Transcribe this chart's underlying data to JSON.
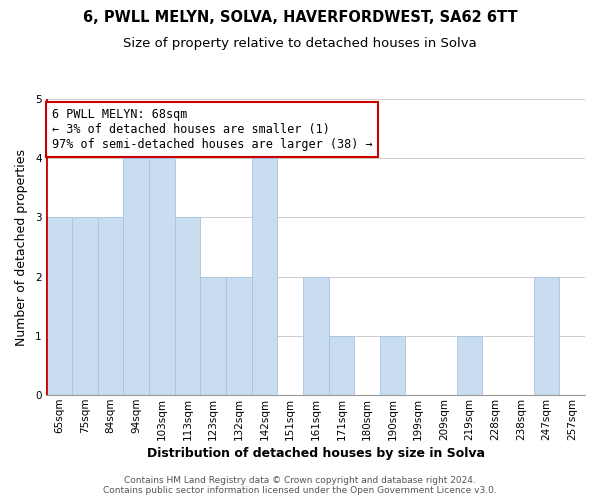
{
  "title_line1": "6, PWLL MELYN, SOLVA, HAVERFORDWEST, SA62 6TT",
  "title_line2": "Size of property relative to detached houses in Solva",
  "xlabel": "Distribution of detached houses by size in Solva",
  "ylabel": "Number of detached properties",
  "bar_labels": [
    "65sqm",
    "75sqm",
    "84sqm",
    "94sqm",
    "103sqm",
    "113sqm",
    "123sqm",
    "132sqm",
    "142sqm",
    "151sqm",
    "161sqm",
    "171sqm",
    "180sqm",
    "190sqm",
    "199sqm",
    "209sqm",
    "219sqm",
    "228sqm",
    "238sqm",
    "247sqm",
    "257sqm"
  ],
  "bar_heights": [
    3,
    3,
    3,
    4,
    4,
    3,
    2,
    2,
    4,
    0,
    2,
    1,
    0,
    1,
    0,
    0,
    1,
    0,
    0,
    2,
    0
  ],
  "bar_color": "#c8ddf0",
  "bar_edge_color": "#a8c4e0",
  "ylim": [
    0,
    5
  ],
  "yticks": [
    0,
    1,
    2,
    3,
    4,
    5
  ],
  "annotation_line1": "6 PWLL MELYN: 68sqm",
  "annotation_line2": "← 3% of detached houses are smaller (1)",
  "annotation_line3": "97% of semi-detached houses are larger (38) →",
  "annotation_box_color": "#ffffff",
  "annotation_box_edge_color": "#cc0000",
  "property_bar_index": 0,
  "property_line_color": "#cc0000",
  "grid_color": "#cccccc",
  "background_color": "#ffffff",
  "footer_line1": "Contains HM Land Registry data © Crown copyright and database right 2024.",
  "footer_line2": "Contains public sector information licensed under the Open Government Licence v3.0.",
  "title_fontsize": 10.5,
  "subtitle_fontsize": 9.5,
  "axis_label_fontsize": 9,
  "tick_fontsize": 7.5,
  "annotation_fontsize": 8.5,
  "footer_fontsize": 6.5
}
